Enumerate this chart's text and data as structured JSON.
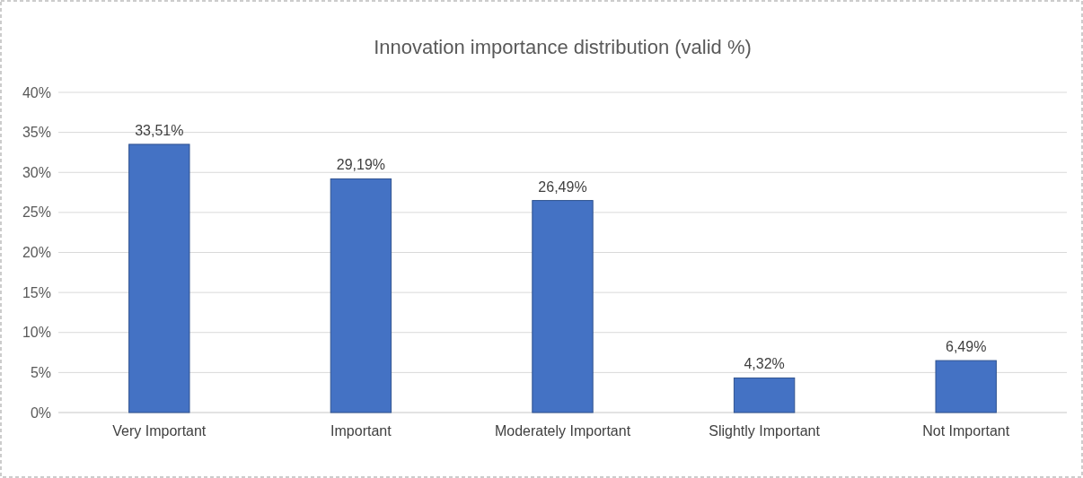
{
  "chart_data": {
    "type": "bar",
    "title": "Innovation importance distribution (valid %)",
    "categories": [
      "Very Important",
      "Important",
      "Moderately Important",
      "Slightly Important",
      "Not Important"
    ],
    "values": [
      33.51,
      29.19,
      26.49,
      4.32,
      6.49
    ],
    "value_labels": [
      "33,51%",
      "29,19%",
      "26,49%",
      "4,32%",
      "6,49%"
    ],
    "color": "#4472c4",
    "ylim": [
      0,
      40
    ],
    "yticks": [
      {
        "value": 0,
        "label": "0%"
      },
      {
        "value": 5,
        "label": "5%"
      },
      {
        "value": 10,
        "label": "10%"
      },
      {
        "value": 15,
        "label": "15%"
      },
      {
        "value": 20,
        "label": "20%"
      },
      {
        "value": 25,
        "label": "25%"
      },
      {
        "value": 30,
        "label": "30%"
      },
      {
        "value": 35,
        "label": "35%"
      },
      {
        "value": 40,
        "label": "40%"
      }
    ],
    "grid": "y"
  }
}
